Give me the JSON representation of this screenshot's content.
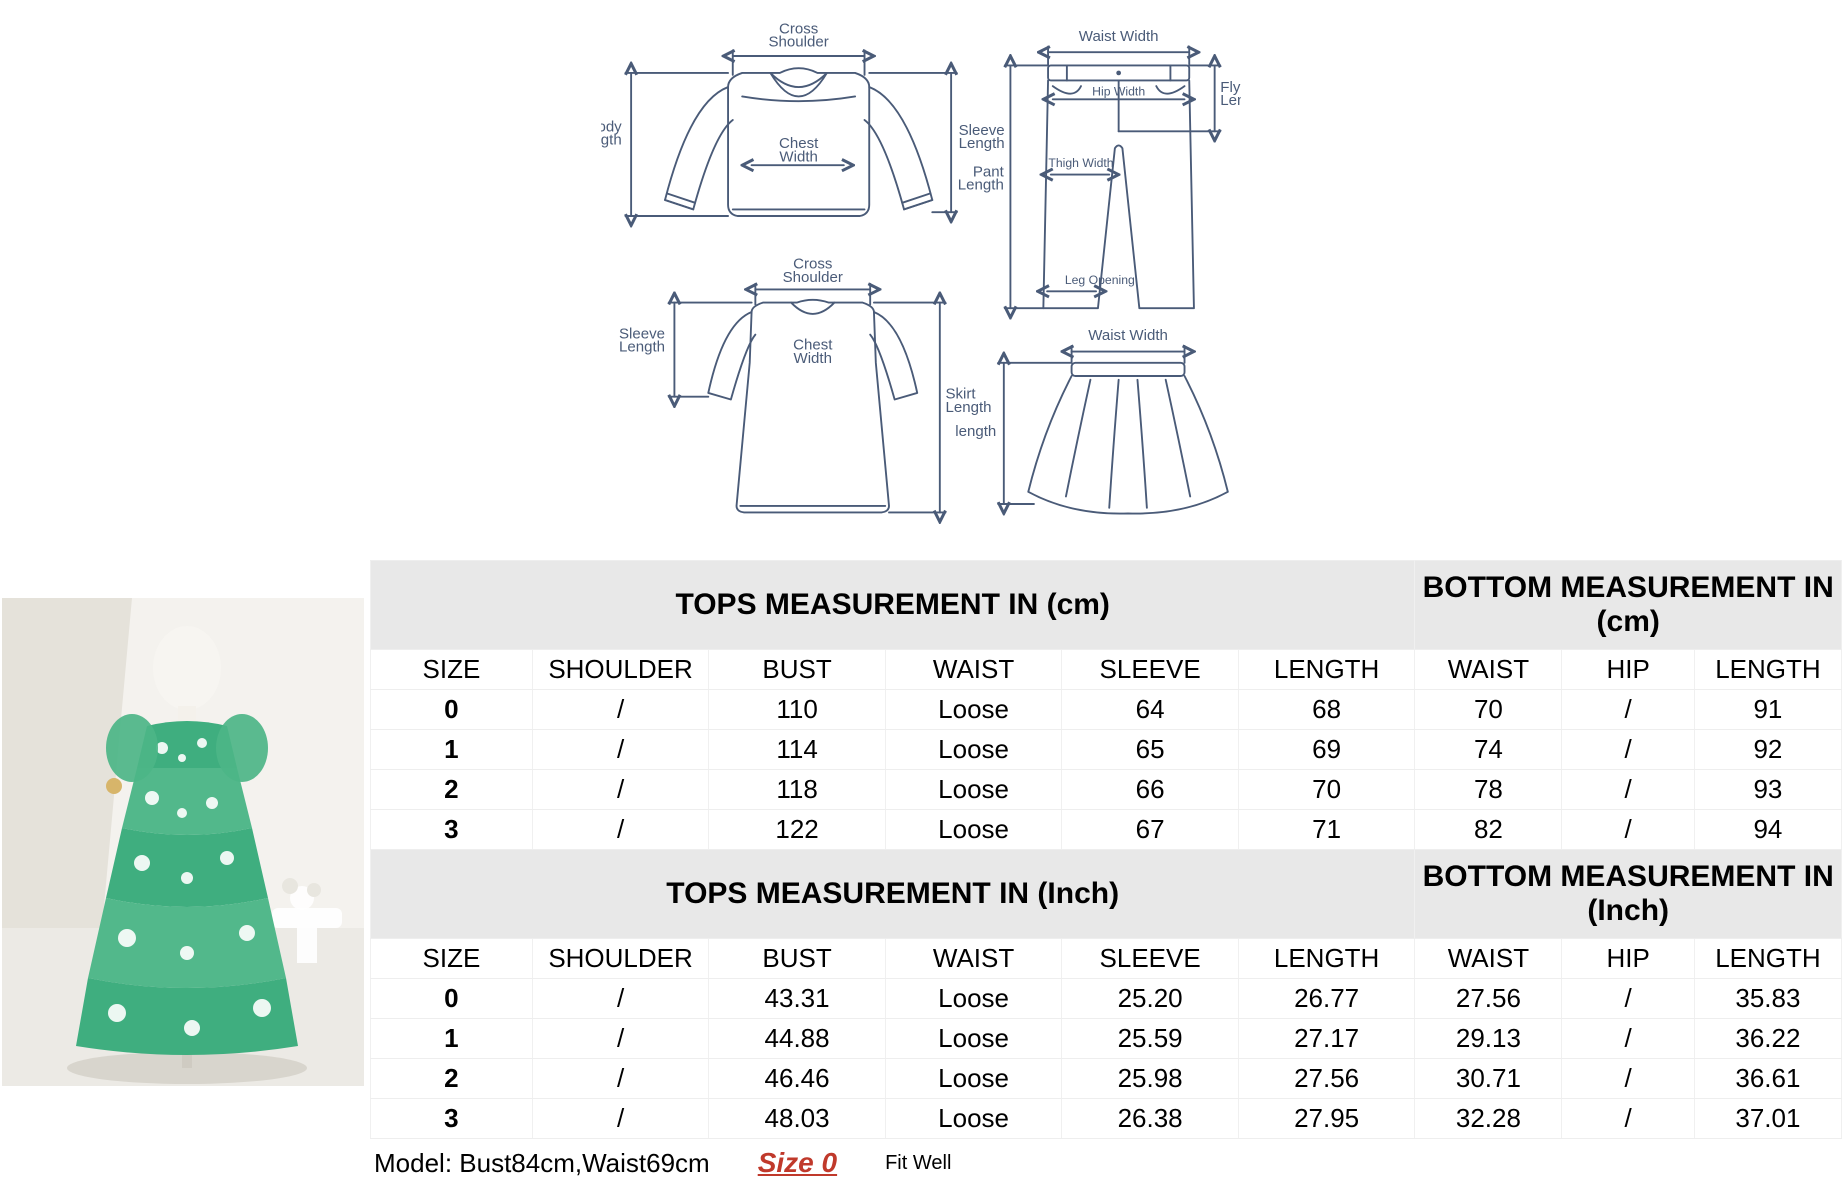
{
  "diagram": {
    "stroke_color": "#4a5b78",
    "font_size": 16,
    "top_labels": {
      "cross_shoulder": "Cross\nShoulder",
      "body_length": "Body\nLength",
      "chest_width": "Chest\nWidth",
      "sleeve_length": "Sleeve\nLength"
    },
    "pant_labels": {
      "waist_width": "Waist Width",
      "pant_length": "Pant\nLength",
      "hip_width": "Hip Width",
      "fly_length": "Fly\nLength",
      "thigh_width": "Thigh Width",
      "leg_opening": "Leg Opening"
    },
    "dress_labels": {
      "cross_shoulder": "Cross\nShoulder",
      "sleeve_length": "Sleeve\nLength",
      "chest_width": "Chest\nWidth",
      "skirt_length": "Skirt\nLength"
    },
    "skirt_labels": {
      "waist_width": "Waist Width",
      "length": "length"
    }
  },
  "size_chart": {
    "header_bg": "#e8e8e8",
    "border_color": "#eeeeee",
    "sections": [
      {
        "tops_title": "TOPS MEASUREMENT IN (cm)",
        "bottom_title": "BOTTOM MEASUREMENT IN (cm)",
        "columns": [
          "SIZE",
          "SHOULDER",
          "BUST",
          "WAIST",
          "SLEEVE",
          "LENGTH",
          "WAIST",
          "HIP",
          "LENGTH"
        ],
        "rows": [
          [
            "0",
            "/",
            "110",
            "Loose",
            "64",
            "68",
            "70",
            "/",
            "91"
          ],
          [
            "1",
            "/",
            "114",
            "Loose",
            "65",
            "69",
            "74",
            "/",
            "92"
          ],
          [
            "2",
            "/",
            "118",
            "Loose",
            "66",
            "70",
            "78",
            "/",
            "93"
          ],
          [
            "3",
            "/",
            "122",
            "Loose",
            "67",
            "71",
            "82",
            "/",
            "94"
          ]
        ]
      },
      {
        "tops_title": "TOPS MEASUREMENT IN (Inch)",
        "bottom_title": "BOTTOM MEASUREMENT IN (Inch)",
        "columns": [
          "SIZE",
          "SHOULDER",
          "BUST",
          "WAIST",
          "SLEEVE",
          "LENGTH",
          "WAIST",
          "HIP",
          "LENGTH"
        ],
        "rows": [
          [
            "0",
            "/",
            "43.31",
            "Loose",
            "25.20",
            "26.77",
            "27.56",
            "/",
            "35.83"
          ],
          [
            "1",
            "/",
            "44.88",
            "Loose",
            "25.59",
            "27.17",
            "29.13",
            "/",
            "36.22"
          ],
          [
            "2",
            "/",
            "46.46",
            "Loose",
            "25.98",
            "27.56",
            "30.71",
            "/",
            "36.61"
          ],
          [
            "3",
            "/",
            "48.03",
            "Loose",
            "26.38",
            "27.95",
            "32.28",
            "/",
            "37.01"
          ]
        ]
      }
    ],
    "footer": {
      "model_info": "Model: Bust84cm,Waist69cm",
      "chosen_size": "Size 0",
      "fit": "Fit Well"
    }
  },
  "product_photo": {
    "bg_floor": "#e9e6e1",
    "bg_wall": "#f3f1ec",
    "mannequin_color": "#f5f3ef",
    "dress_green": "#3fae7f",
    "dress_green_light": "#8ed2b1",
    "dress_white": "#ffffff"
  }
}
